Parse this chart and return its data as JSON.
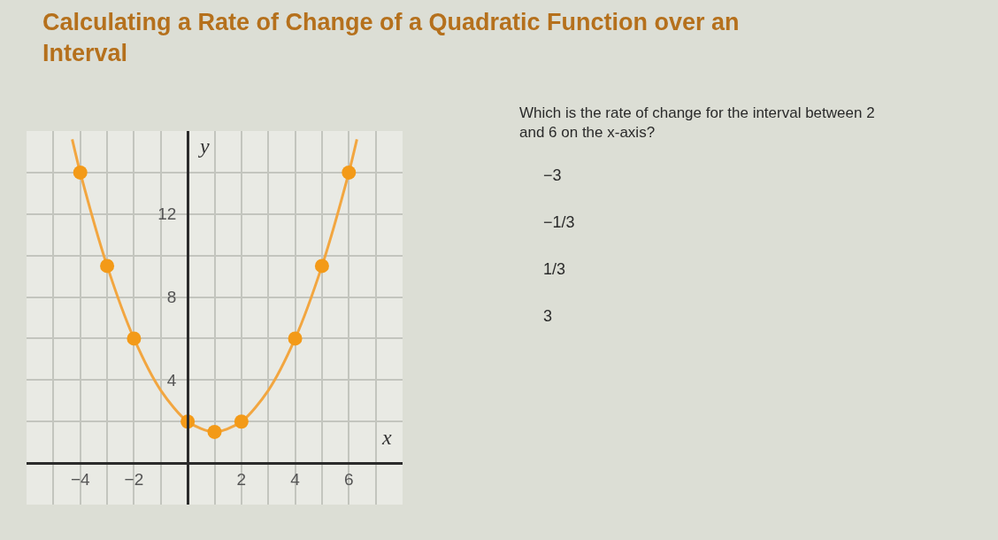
{
  "chart_data": {
    "type": "scatter",
    "title": "Calculating a Rate of Change of a Quadratic Function over an Interval",
    "xlabel": "x",
    "ylabel": "y",
    "series": [
      {
        "type": "line",
        "marker": "none",
        "color": "#f2a640",
        "x": [
          -4.3,
          -4,
          -3,
          -2,
          -1,
          0,
          1,
          2,
          3,
          4,
          5,
          6,
          6.3
        ],
        "values": [
          15.6,
          14,
          9.5,
          6,
          3.5,
          2,
          1.5,
          2,
          3.5,
          6,
          9.5,
          14,
          15.6
        ]
      },
      {
        "color": "#f39a18",
        "x": [
          -4,
          -3,
          -2,
          0,
          1,
          2,
          4,
          5,
          6
        ],
        "values": [
          14,
          9.5,
          6,
          2,
          1.5,
          2,
          6,
          9.5,
          14
        ]
      }
    ],
    "marker": "circle",
    "xlim": [
      -6,
      8
    ],
    "ylim": [
      -2,
      16
    ],
    "xticks": [
      {
        "value": -5,
        "label": null
      },
      -4,
      {
        "value": -3,
        "label": null
      },
      -2,
      {
        "value": -1,
        "label": null
      },
      {
        "value": 0,
        "label": null
      },
      {
        "value": 1,
        "label": null
      },
      2,
      {
        "value": 3,
        "label": null
      },
      4,
      {
        "value": 5,
        "label": null
      },
      6,
      {
        "value": 7,
        "label": null
      }
    ],
    "yticks": [
      {
        "value": 0,
        "label": null
      },
      {
        "value": 2,
        "label": null
      },
      4,
      {
        "value": 6,
        "label": null
      },
      8,
      {
        "value": 10,
        "label": null
      },
      12,
      {
        "value": 14,
        "label": null
      }
    ],
    "grid": true,
    "annotations": [
      "Which is the rate of change for the interval between 2 and 6 on the x-axis?",
      "−3",
      "−1/3",
      "1/3",
      "3"
    ]
  }
}
